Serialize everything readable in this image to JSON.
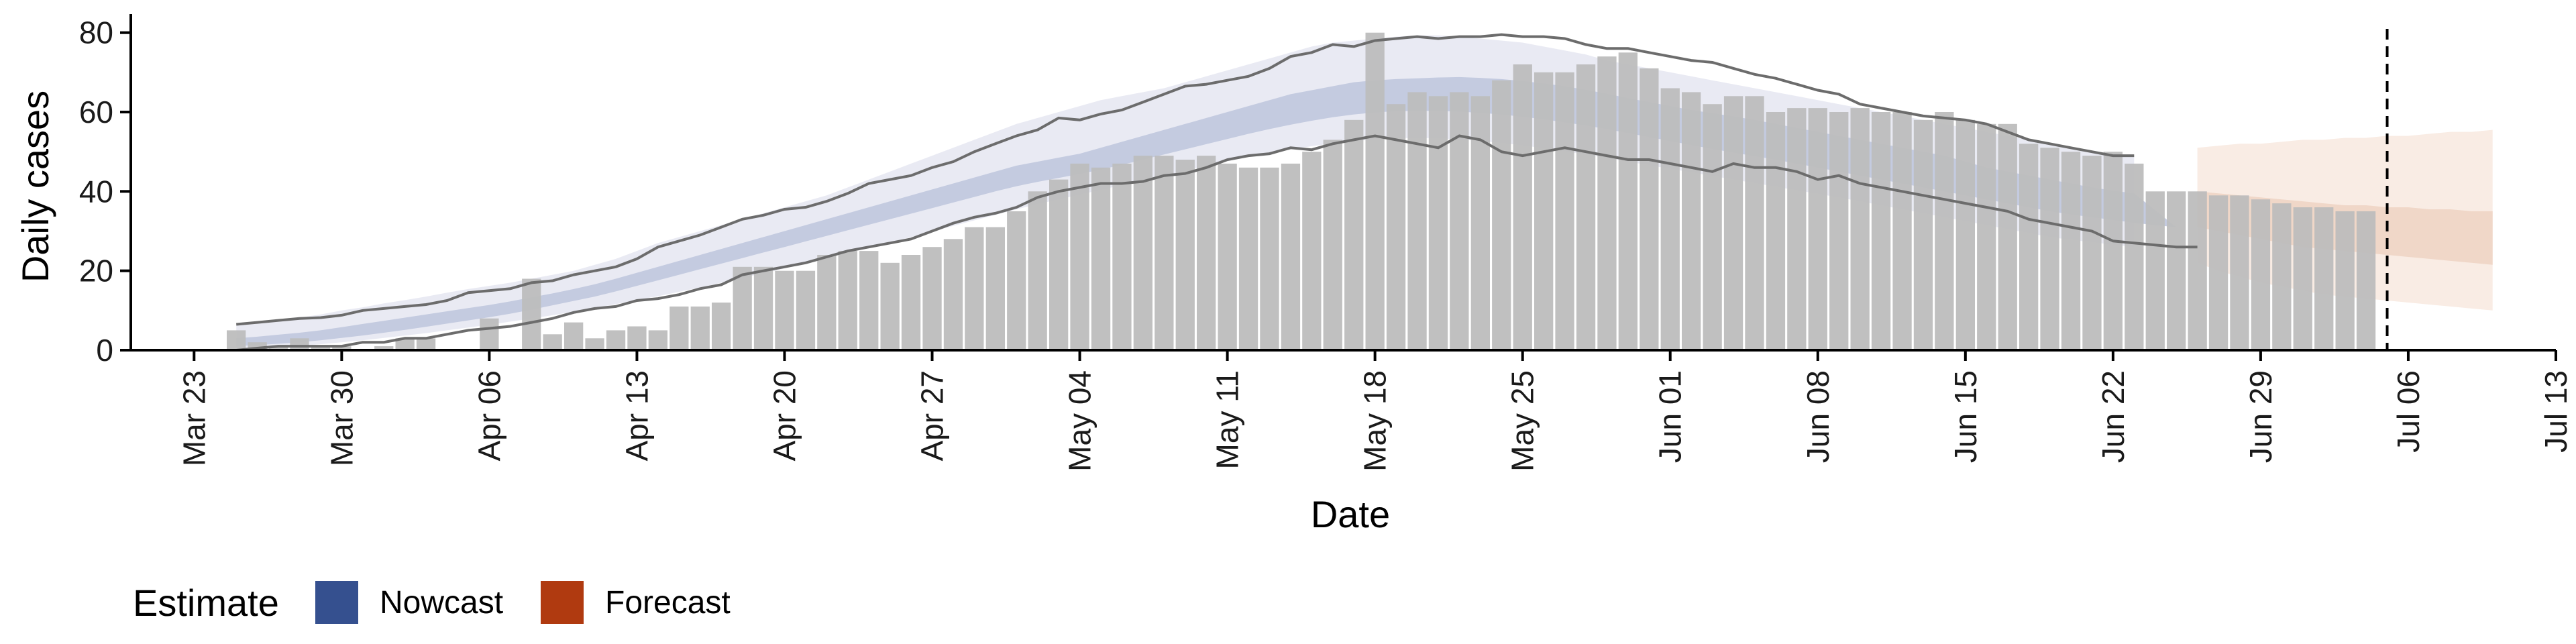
{
  "chart_data": {
    "type": "bar",
    "title": "",
    "xlabel": "Date",
    "ylabel": "Daily cases",
    "ylim": [
      0,
      84
    ],
    "yticks": [
      0,
      20,
      40,
      60,
      80
    ],
    "xlim": [
      "2020-03-20",
      "2020-07-13"
    ],
    "xtick_labels": [
      {
        "date": "2020-03-23",
        "label": "Mar 23"
      },
      {
        "date": "2020-03-30",
        "label": "Mar 30"
      },
      {
        "date": "2020-04-06",
        "label": "Apr 06"
      },
      {
        "date": "2020-04-13",
        "label": "Apr 13"
      },
      {
        "date": "2020-04-20",
        "label": "Apr 20"
      },
      {
        "date": "2020-04-27",
        "label": "Apr 27"
      },
      {
        "date": "2020-05-04",
        "label": "May 04"
      },
      {
        "date": "2020-05-11",
        "label": "May 11"
      },
      {
        "date": "2020-05-18",
        "label": "May 18"
      },
      {
        "date": "2020-05-25",
        "label": "May 25"
      },
      {
        "date": "2020-06-01",
        "label": "Jun 01"
      },
      {
        "date": "2020-06-08",
        "label": "Jun 08"
      },
      {
        "date": "2020-06-15",
        "label": "Jun 15"
      },
      {
        "date": "2020-06-22",
        "label": "Jun 22"
      },
      {
        "date": "2020-06-29",
        "label": "Jun 29"
      },
      {
        "date": "2020-07-06",
        "label": "Jul 06"
      },
      {
        "date": "2020-07-13",
        "label": "Jul 13"
      }
    ],
    "bars": {
      "first_date": "2020-03-25",
      "values": [
        5,
        2,
        1,
        3,
        1,
        1,
        0,
        1,
        3,
        3,
        0,
        0,
        8,
        0,
        18,
        4,
        7,
        3,
        5,
        6,
        5,
        11,
        11,
        12,
        21,
        21,
        20,
        20,
        24,
        25,
        25,
        22,
        24,
        26,
        28,
        31,
        31,
        35,
        40,
        43,
        47,
        46,
        47,
        49,
        49,
        48,
        49,
        47,
        46,
        46,
        47,
        50,
        53,
        58,
        80,
        62,
        65,
        64,
        65,
        64,
        68,
        72,
        70,
        70,
        72,
        74,
        75,
        71,
        66,
        65,
        62,
        64,
        64,
        60,
        61,
        61,
        60,
        61,
        60,
        60,
        58,
        60,
        58,
        57,
        57,
        52,
        51,
        50,
        49,
        50,
        47,
        40,
        40,
        40,
        39,
        39,
        38,
        37,
        36,
        36,
        35,
        35
      ]
    },
    "nowcast": {
      "first_date": "2020-03-25",
      "outer_upper": [
        6.5,
        7.1,
        7.8,
        8.2,
        9,
        10,
        10.8,
        11.8,
        12.6,
        13.5,
        14.5,
        15.4,
        16.2,
        17,
        18,
        19,
        20,
        21.5,
        23,
        25,
        27,
        28.5,
        30,
        31.5,
        33,
        34.5,
        36,
        37.5,
        39,
        41,
        43,
        45,
        47,
        49,
        51,
        53,
        55,
        57,
        58.5,
        60,
        61.5,
        63,
        64,
        65,
        66,
        67.5,
        69,
        70.5,
        72,
        73.5,
        75,
        76.5,
        77.5,
        78,
        78.5,
        79,
        79.3,
        79.3,
        79,
        78.5,
        78,
        77.5,
        76.5,
        75.5,
        74.5,
        73,
        72,
        71,
        70,
        69,
        68,
        67,
        66,
        65,
        64,
        63,
        62,
        61,
        60,
        59,
        58,
        57,
        56,
        55,
        54,
        53,
        52,
        51,
        50,
        49.5,
        49
      ],
      "inner_upper": [
        3,
        3.4,
        3.9,
        4.4,
        5,
        5.8,
        6.6,
        7.4,
        8.2,
        9,
        9.8,
        10.6,
        11.4,
        12.3,
        13.3,
        14.3,
        15.4,
        16.6,
        18,
        19.5,
        21,
        22.5,
        24,
        25.5,
        27,
        28.5,
        30,
        31.5,
        33,
        34.5,
        36,
        37.5,
        39,
        40.5,
        42,
        43.5,
        45,
        46.5,
        47.5,
        48.5,
        49.5,
        51,
        52.5,
        54,
        55.5,
        57,
        58.5,
        60,
        61.5,
        63,
        64.5,
        65.5,
        66.5,
        67.5,
        68,
        68.3,
        68.5,
        68.7,
        68.8,
        68.6,
        68.3,
        67.8,
        67.2,
        66.5,
        65.6,
        64.6,
        63.5,
        62.5,
        61.5,
        60.5,
        59.7,
        58.9,
        58,
        57,
        56,
        55,
        54,
        53,
        52,
        51,
        50,
        49,
        47.5,
        46,
        45,
        44,
        43,
        42,
        41,
        40.2,
        39.5
      ],
      "inner_lower": [
        1,
        1.3,
        1.6,
        2,
        2.5,
        3.1,
        3.7,
        4.4,
        5.1,
        5.9,
        6.7,
        7.5,
        8.3,
        9.2,
        10.2,
        11.3,
        12.4,
        13.5,
        14.8,
        16.2,
        17.6,
        19,
        20.4,
        21.8,
        23.2,
        24.6,
        26,
        27.4,
        28.8,
        30.2,
        31.6,
        33,
        34.4,
        35.8,
        37.2,
        38.6,
        40,
        41.3,
        42.4,
        43.4,
        44.4,
        45.5,
        46.7,
        48,
        49.3,
        50.6,
        51.9,
        53.2,
        54.5,
        55.7,
        56.8,
        57.8,
        58.7,
        59.4,
        59.9,
        60.2,
        60.3,
        60.3,
        60.1,
        59.8,
        59.4,
        58.8,
        58.2,
        57.4,
        56.6,
        55.7,
        54.7,
        53.7,
        52.7,
        51.7,
        50.7,
        49.8,
        48.9,
        48,
        47,
        46,
        45,
        44,
        43,
        42,
        41,
        40,
        39,
        38,
        37,
        36,
        35,
        34.2,
        33.5,
        32.8,
        32.1,
        31.5,
        31
      ],
      "outer_lower": [
        0.3,
        0.5,
        0.8,
        1.1,
        1.5,
        2,
        2.5,
        3.1,
        3.7,
        4.3,
        5,
        5.7,
        6.4,
        7.2,
        8,
        8.8,
        9.7,
        10.6,
        11.6,
        12.6,
        13.6,
        14.7,
        15.8,
        17,
        18.2,
        19.4,
        20.6,
        21.9,
        23.2,
        24.5,
        25.8,
        27.1,
        28.5,
        29.9,
        31.3,
        32.7,
        34.1,
        35.5,
        36.8,
        38,
        39.2,
        40.4,
        41.6,
        42.8,
        44,
        45.2,
        46.4,
        47.6,
        48.7,
        49.7,
        50.6,
        51.4,
        52.1,
        52.7,
        53.1,
        53.4,
        53.5,
        53.4,
        53.1,
        52.7,
        52.2,
        51.6,
        50.9,
        50.1,
        49.3,
        48.4,
        47.5,
        46.6,
        45.7,
        44.8,
        43.9,
        43,
        42.1,
        41.2,
        40.3,
        39.4,
        38.5,
        37.5,
        36.5,
        35.5,
        34.5,
        33.5,
        32.5,
        31.5,
        30.5,
        29.5,
        28.5,
        27.8,
        27.2,
        26.6,
        26
      ]
    },
    "forecast": {
      "first_date": "2020-06-26",
      "outer_upper": [
        51,
        51.5,
        52,
        52,
        52.5,
        53,
        53,
        53.5,
        53.5,
        54,
        54,
        54.5,
        55,
        55,
        55.5
      ],
      "inner_upper": [
        40,
        39.5,
        39,
        38.5,
        38,
        37.5,
        37,
        36.5,
        36.5,
        36,
        36,
        35.5,
        35.5,
        35,
        35
      ],
      "inner_lower": [
        31,
        30,
        29,
        28,
        27,
        26,
        25.5,
        25,
        24.5,
        24,
        23.5,
        23,
        22.5,
        22,
        21.5
      ],
      "outer_lower": [
        22,
        20,
        18.5,
        17,
        16,
        15,
        14,
        13.5,
        13,
        12.5,
        12,
        11.5,
        11,
        10.5,
        10
      ]
    },
    "line_upper": {
      "first_date": "2020-03-25",
      "values": [
        6.5,
        7,
        7.5,
        8,
        8.2,
        8.8,
        10,
        10.5,
        11,
        11.5,
        12.5,
        14.5,
        15,
        15.5,
        17,
        17.5,
        19,
        20,
        21,
        23,
        26,
        27.5,
        29,
        31,
        33,
        34,
        35.5,
        36,
        37.5,
        39.5,
        42,
        43,
        44,
        46,
        47.5,
        50,
        52,
        54,
        55.5,
        58.5,
        58,
        59.5,
        60.5,
        62.5,
        64.5,
        66.5,
        67,
        68,
        69,
        71,
        74,
        75,
        77,
        76.5,
        78,
        78.5,
        79,
        78.5,
        79,
        79,
        79.5,
        79,
        79,
        78.5,
        77,
        76,
        76,
        75,
        74,
        73,
        72.5,
        71,
        69.5,
        68.5,
        67,
        65.5,
        64.5,
        62,
        61,
        60,
        59,
        58.5,
        58,
        57,
        55,
        53,
        52,
        51,
        50,
        49,
        49
      ]
    },
    "line_lower": {
      "first_date": "2020-03-25",
      "values": [
        0,
        0.5,
        1,
        1,
        1,
        1,
        2,
        2,
        3,
        3,
        4,
        5,
        5.5,
        6,
        7,
        8,
        9.5,
        10.5,
        11,
        12.5,
        13,
        14,
        15.5,
        16.5,
        19,
        20,
        21,
        22,
        23.5,
        25,
        26,
        27,
        28,
        30,
        32,
        33.5,
        34.5,
        36,
        38.5,
        40,
        41,
        42,
        42,
        42.5,
        44,
        44.5,
        46,
        48,
        49,
        49.5,
        51,
        50.5,
        52,
        53,
        54,
        53,
        52,
        51,
        54,
        53,
        50,
        49,
        50,
        51,
        50,
        49,
        48,
        48,
        47,
        46,
        45,
        47,
        46,
        46,
        45,
        43,
        44,
        42,
        41,
        40,
        39,
        38,
        37,
        36,
        35,
        33,
        32,
        31,
        30,
        27.5,
        27,
        26.5,
        26,
        26
      ]
    },
    "vline_date": "2020-07-05",
    "legend": {
      "title": "Estimate",
      "position": "bottom-left",
      "items": [
        {
          "label": "Nowcast",
          "color": "#35508f"
        },
        {
          "label": "Forecast",
          "color": "#b03a10"
        }
      ]
    },
    "colors": {
      "bar": "#bdbdbd",
      "nowcast_outer": "#e9eaf3",
      "nowcast_inner": "#c4cbe0",
      "forecast_outer": "#f9ece4",
      "forecast_inner": "#f0d7c8",
      "line": "#6c6c6c",
      "vline": "#000000",
      "axis": "#000000"
    },
    "grid": false
  }
}
